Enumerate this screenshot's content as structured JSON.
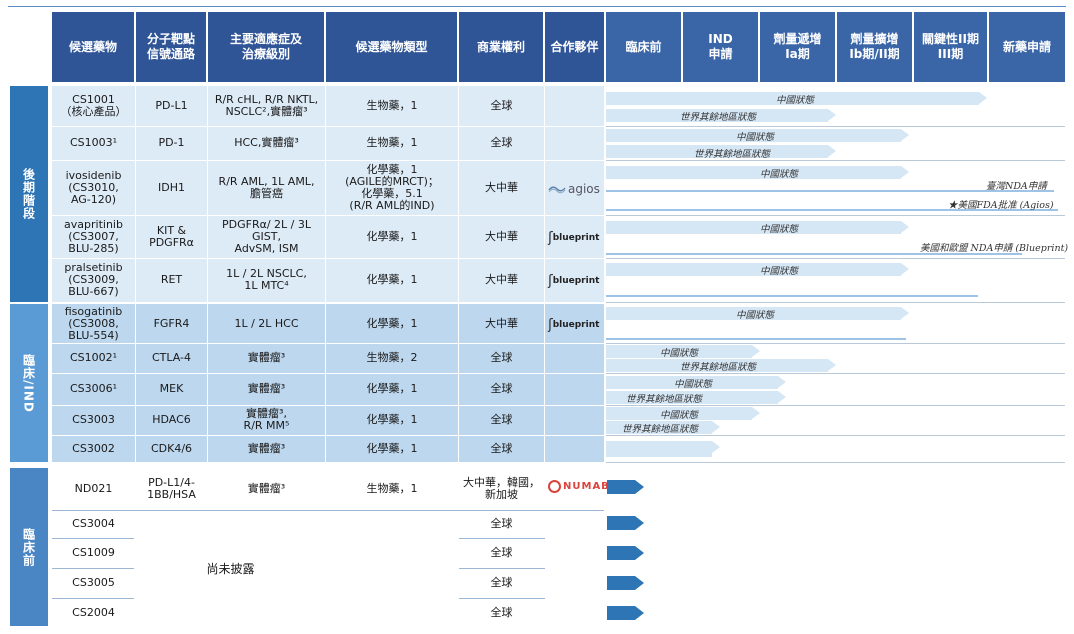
{
  "headers": [
    "候選藥物",
    "分子靶點\n信號通路",
    "主要適應症及\n治療級別",
    "候選藥物類型",
    "商業權利",
    "合作夥伴",
    "臨床前",
    "IND\n申請",
    "劑量遞增\nIa期",
    "劑量擴增\nIb期/II期",
    "關鍵性II期\nIII期",
    "新藥申請"
  ],
  "groups": {
    "late": "後期階段",
    "clinical": "臨床/IND",
    "preclinical": "臨床前"
  },
  "rows": [
    {
      "drug": "CS1001\n（核心產品）",
      "target": "PD-L1",
      "indication": "R/R cHL, R/R NKTL,\nNSCLC²,實體瘤³",
      "type": "生物藥，1",
      "rights": "全球",
      "partner": ""
    },
    {
      "drug": "CS1003¹",
      "target": "PD-1",
      "indication": "HCC,實體瘤³",
      "type": "生物藥，1",
      "rights": "全球",
      "partner": ""
    },
    {
      "drug": "ivosidenib\n(CS3010,\nAG-120)",
      "target": "IDH1",
      "indication": "R/R AML, 1L AML,\n膽管癌",
      "type": "化學藥，1\n(AGILE的MRCT)；\n化學藥，5.1\n(R/R AML的IND)",
      "rights": "大中華",
      "partner": "agios"
    },
    {
      "drug": "avapritinib\n(CS3007,\nBLU-285)",
      "target": "KIT &\nPDGFRα",
      "indication": "PDGFRα/ 2L / 3L\nGIST,\nAdvSM, ISM",
      "type": "化學藥，1",
      "rights": "大中華",
      "partner": "blueprint"
    },
    {
      "drug": "pralsetinib\n(CS3009,\nBLU-667)",
      "target": "RET",
      "indication": "1L / 2L NSCLC,\n1L MTC⁴",
      "type": "化學藥，1",
      "rights": "大中華",
      "partner": "blueprint"
    },
    {
      "drug": "fisogatinib\n(CS3008,\nBLU-554)",
      "target": "FGFR4",
      "indication": "1L / 2L HCC",
      "type": "化學藥，1",
      "rights": "大中華",
      "partner": "blueprint"
    },
    {
      "drug": "CS1002¹",
      "target": "CTLA-4",
      "indication": "實體瘤³",
      "type": "生物藥，2",
      "rights": "全球",
      "partner": ""
    },
    {
      "drug": "CS3006¹",
      "target": "MEK",
      "indication": "實體瘤³",
      "type": "化學藥，1",
      "rights": "全球",
      "partner": ""
    },
    {
      "drug": "CS3003",
      "target": "HDAC6",
      "indication": "實體瘤³,\nR/R MM⁵",
      "type": "化學藥，1",
      "rights": "全球",
      "partner": ""
    },
    {
      "drug": "CS3002",
      "target": "CDK4/6",
      "indication": "實體瘤³",
      "type": "化學藥，1",
      "rights": "全球",
      "partner": ""
    },
    {
      "drug": "ND021",
      "target": "PD-L1/4-\n1BB/HSA",
      "indication": "實體瘤³",
      "type": "生物藥，1",
      "rights": "大中華，韓國，\n新加坡",
      "partner": "NUMAB"
    },
    {
      "drug": "CS3004",
      "target": "",
      "indication": "",
      "type": "",
      "rights": "全球",
      "partner": ""
    },
    {
      "drug": "CS1009",
      "target": "",
      "indication": "",
      "type": "",
      "rights": "全球",
      "partner": ""
    },
    {
      "drug": "CS3005",
      "target": "",
      "indication": "",
      "type": "",
      "rights": "全球",
      "partner": ""
    },
    {
      "drug": "CS2004",
      "target": "",
      "indication": "",
      "type": "",
      "rights": "全球",
      "partner": ""
    }
  ],
  "undisclosed": "尚未披露",
  "status": {
    "china": "中國狀態",
    "row": "世界其餘地區狀態",
    "taiwan_nda": "臺灣NDA申請",
    "fda": "★美國FDA批准 (Agios)",
    "us_eu_nda": "美國和歐盟 NDA申請 (Blueprint)"
  },
  "colors": {
    "header": "#2f5597",
    "late_band": "#2e75b6",
    "clinical_band": "#5b9bd5",
    "pre_band": "#4a86c4",
    "late_row": "#ddebf7",
    "clinical_row": "#bdd7ee",
    "progress_bar": "#d5e6f4",
    "preclinical_arrow": "#2e75b6"
  }
}
